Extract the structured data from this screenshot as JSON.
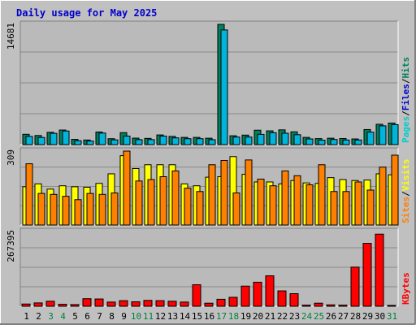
{
  "colors": {
    "page_bg": "#c0c0c0",
    "plot_bg": "#bababa",
    "title": "#0000cc",
    "hits": "#00805c",
    "files": "#00b4dc",
    "pages": "#00cccc",
    "visits": "#ffff00",
    "sites": "#ff8000",
    "kbytes": "#ff0000",
    "weekend": "#008040",
    "weekday": "#000000",
    "grid": "#8a8a8a"
  },
  "chart_data": {
    "title": "Daily usage for May 2025",
    "type": "bar",
    "categories": [
      "1",
      "2",
      "3",
      "4",
      "5",
      "6",
      "7",
      "8",
      "9",
      "10",
      "11",
      "12",
      "13",
      "14",
      "15",
      "16",
      "17",
      "18",
      "19",
      "20",
      "21",
      "22",
      "23",
      "24",
      "25",
      "26",
      "27",
      "28",
      "29",
      "30",
      "31"
    ],
    "weekend_days": [
      3,
      4,
      10,
      11,
      17,
      18,
      24,
      25,
      31
    ],
    "panels": [
      {
        "name": "hits_files",
        "max_label": "14681",
        "ylim": [
          0,
          14681
        ],
        "legend": [
          {
            "text": "Pages",
            "color": "pages"
          },
          {
            "text": "/",
            "color": "weekday"
          },
          {
            "text": "Files",
            "color": "title"
          },
          {
            "text": "/",
            "color": "weekday"
          },
          {
            "text": "Hits",
            "color": "hits"
          }
        ],
        "series": [
          {
            "name": "Hits",
            "color": "hits",
            "values": [
              1260,
              1110,
              1500,
              1780,
              640,
              560,
              1540,
              720,
              1460,
              790,
              760,
              1180,
              1000,
              880,
              880,
              780,
              14681,
              1080,
              1160,
              1760,
              1680,
              1800,
              1560,
              880,
              730,
              780,
              740,
              690,
              1840,
              2480,
              2630
            ]
          },
          {
            "name": "Files",
            "color": "files",
            "values": [
              1000,
              870,
              1380,
              1660,
              470,
              430,
              1410,
              580,
              1040,
              600,
              610,
              1040,
              820,
              720,
              720,
              600,
              14000,
              920,
              920,
              1250,
              1450,
              1390,
              1210,
              690,
              540,
              620,
              560,
              560,
              1520,
              2290,
              2440
            ]
          }
        ]
      },
      {
        "name": "visits_sites",
        "max_label": "309",
        "ylim": [
          0,
          309
        ],
        "legend": [
          {
            "text": "Sites",
            "color": "sites"
          },
          {
            "text": "/",
            "color": "weekday"
          },
          {
            "text": "Visits",
            "color": "visits"
          }
        ],
        "series": [
          {
            "name": "Visits",
            "color": "visits",
            "values": [
              160,
              172,
              150,
              164,
              160,
              158,
              174,
              214,
              290,
              236,
              252,
              252,
              252,
              172,
              164,
              200,
              202,
              286,
              212,
              180,
              180,
              172,
              186,
              176,
              174,
              198,
              190,
              186,
              188,
              214,
              210
            ]
          },
          {
            "name": "Sites",
            "color": "sites",
            "values": [
              256,
              132,
              128,
              120,
              106,
              132,
              128,
              134,
              309,
              184,
              190,
              202,
              226,
              154,
              140,
              252,
              270,
              134,
              272,
              192,
              164,
              226,
              206,
              168,
              252,
              140,
              140,
              180,
              146,
              242,
              292
            ]
          }
        ]
      },
      {
        "name": "kbytes",
        "max_label": "267395",
        "ylim": [
          0,
          267395
        ],
        "legend": [
          {
            "text": "KBytes",
            "color": "kbytes"
          }
        ],
        "series": [
          {
            "name": "KBytes",
            "color": "kbytes",
            "values": [
              8000,
              12000,
              18000,
              7000,
              6000,
              27000,
              26000,
              15000,
              20000,
              16000,
              21000,
              20000,
              18000,
              15000,
              77000,
              11000,
              25000,
              32000,
              72000,
              86000,
              109000,
              55000,
              45000,
              4000,
              11000,
              5000,
              4000,
              140000,
              225000,
              258000,
              3000
            ]
          }
        ]
      }
    ]
  }
}
